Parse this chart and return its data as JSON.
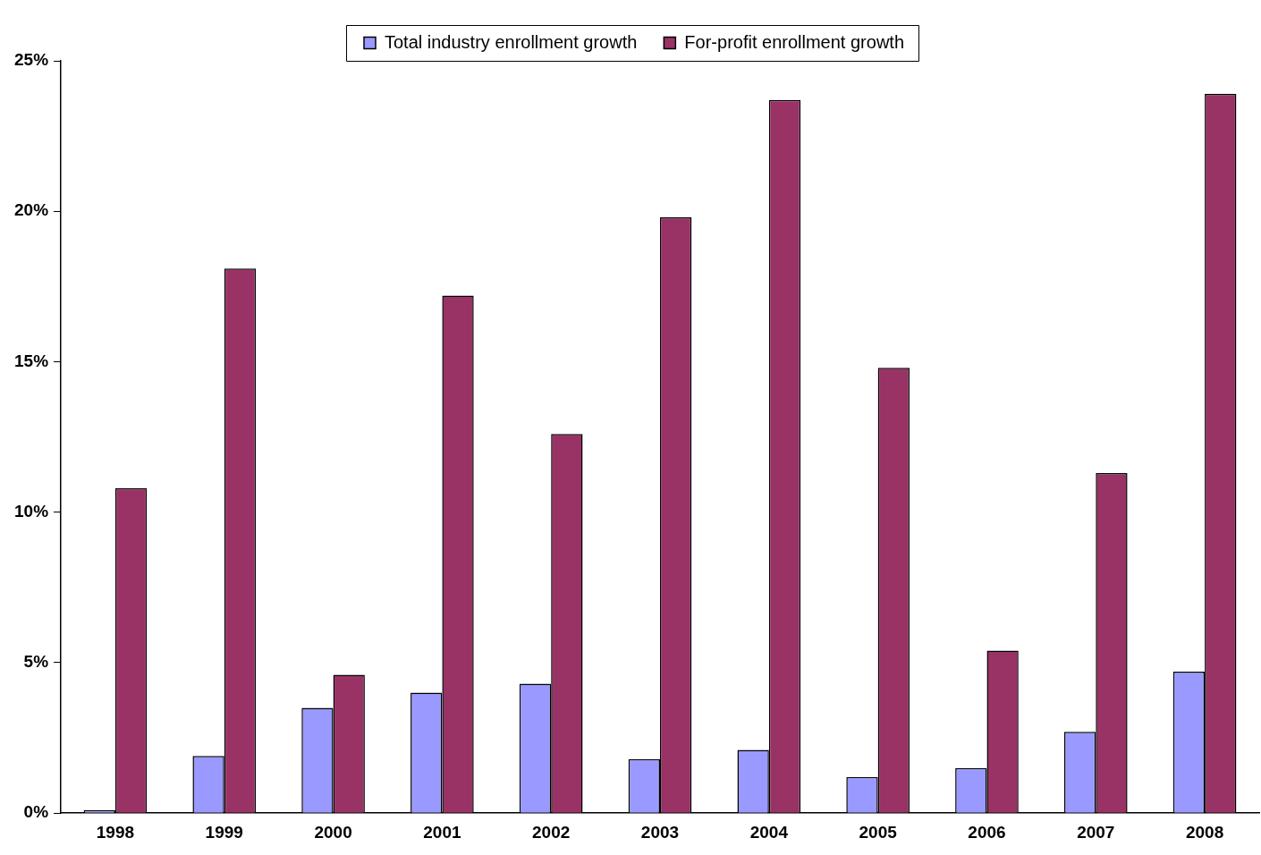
{
  "chart_data": {
    "type": "bar",
    "categories": [
      "1998",
      "1999",
      "2000",
      "2001",
      "2002",
      "2003",
      "2004",
      "2005",
      "2006",
      "2007",
      "2008"
    ],
    "series": [
      {
        "name": "Total industry enrollment growth",
        "color": "#9999ff",
        "values": [
          0.1,
          1.9,
          3.5,
          4.0,
          4.3,
          1.8,
          2.1,
          1.2,
          1.5,
          2.7,
          4.7
        ]
      },
      {
        "name": "For-profit enrollment growth",
        "color": "#993366",
        "values": [
          10.8,
          18.1,
          4.6,
          17.2,
          12.6,
          19.8,
          23.7,
          14.8,
          5.4,
          11.3,
          23.9
        ]
      }
    ],
    "ylim": [
      0,
      25
    ],
    "yticks": [
      {
        "value": 0,
        "label": "0%"
      },
      {
        "value": 5,
        "label": "5%"
      },
      {
        "value": 10,
        "label": "10%"
      },
      {
        "value": 15,
        "label": "15%"
      },
      {
        "value": 20,
        "label": "20%"
      },
      {
        "value": 25,
        "label": "25%"
      }
    ],
    "grid": false,
    "legend": "top"
  }
}
